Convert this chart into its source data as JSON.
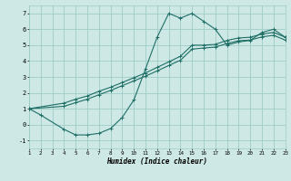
{
  "xlabel": "Humidex (Indice chaleur)",
  "xlim": [
    1,
    23
  ],
  "ylim": [
    -1.5,
    7.5
  ],
  "xticks": [
    1,
    2,
    3,
    4,
    5,
    6,
    7,
    8,
    9,
    10,
    11,
    12,
    13,
    14,
    15,
    16,
    17,
    18,
    19,
    20,
    21,
    22,
    23
  ],
  "yticks": [
    -1,
    0,
    1,
    2,
    3,
    4,
    5,
    6,
    7
  ],
  "bg_color": "#cee9e5",
  "grid_color": "#9dccc7",
  "line_color": "#1e6e66",
  "c1x": [
    1,
    2,
    4,
    5,
    6,
    7,
    8,
    9,
    10,
    11,
    12,
    13,
    14,
    15,
    16,
    17,
    18,
    19,
    20,
    21,
    22,
    23
  ],
  "c1y": [
    1.0,
    0.6,
    -0.3,
    -0.65,
    -0.65,
    -0.55,
    -0.25,
    0.45,
    1.55,
    3.5,
    5.5,
    7.0,
    6.7,
    7.0,
    6.5,
    6.0,
    5.0,
    5.2,
    5.3,
    5.8,
    6.0,
    5.5
  ],
  "c2x": [
    1,
    4,
    5,
    6,
    7,
    8,
    9,
    10,
    11,
    12,
    13,
    14,
    15,
    16,
    17,
    18,
    19,
    20,
    21,
    22,
    23
  ],
  "c2y": [
    1.0,
    1.35,
    1.6,
    1.8,
    2.1,
    2.35,
    2.65,
    2.95,
    3.25,
    3.6,
    3.95,
    4.3,
    5.0,
    5.0,
    5.05,
    5.3,
    5.45,
    5.5,
    5.7,
    5.8,
    5.5
  ],
  "c3x": [
    1,
    4,
    5,
    6,
    7,
    8,
    9,
    10,
    11,
    12,
    13,
    14,
    15,
    16,
    17,
    18,
    19,
    20,
    21,
    22,
    23
  ],
  "c3y": [
    1.0,
    1.15,
    1.38,
    1.6,
    1.88,
    2.15,
    2.45,
    2.75,
    3.05,
    3.38,
    3.72,
    4.05,
    4.75,
    4.82,
    4.88,
    5.1,
    5.28,
    5.32,
    5.52,
    5.62,
    5.32
  ]
}
